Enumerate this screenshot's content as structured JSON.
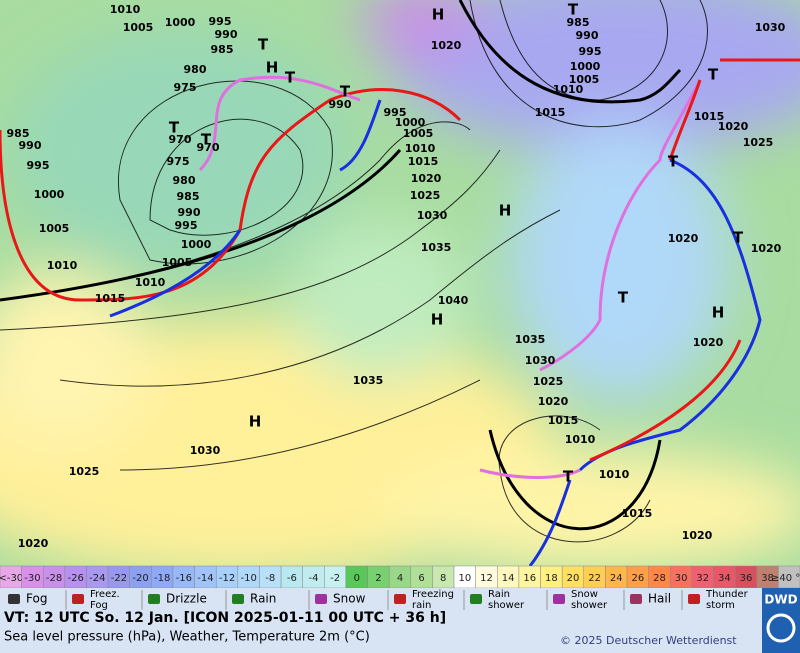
{
  "map": {
    "isobar_labels": [
      "1010",
      "1005",
      "1000",
      "995",
      "990",
      "985",
      "980",
      "975",
      "970",
      "970",
      "975",
      "980",
      "985",
      "990",
      "995",
      "1000",
      "1005",
      "1010",
      "1015",
      "1010",
      "1005",
      "1000",
      "995",
      "990",
      "985",
      "990",
      "995",
      "1000",
      "1005",
      "1010",
      "1015",
      "1020",
      "1025",
      "1030",
      "1035",
      "1040",
      "1035",
      "1030",
      "1025",
      "1020",
      "1015",
      "1010",
      "1010",
      "1015",
      "1020",
      "1035",
      "1030",
      "1025",
      "1020",
      "1020",
      "1015",
      "1010",
      "1005",
      "1000",
      "995",
      "990",
      "985",
      "1030",
      "1020",
      "1015",
      "1025",
      "1020",
      "1020",
      "1020"
    ],
    "centers": [
      "H",
      "T",
      "H",
      "T",
      "T",
      "T",
      "T",
      "H",
      "T",
      "T",
      "T",
      "T",
      "H",
      "H",
      "H",
      "T",
      "T"
    ]
  },
  "temperature_scale": [
    {
      "label": "<-30",
      "color": "#e8a8e8"
    },
    {
      "label": "-30",
      "color": "#d890e8"
    },
    {
      "label": "-28",
      "color": "#c890e8"
    },
    {
      "label": "-26",
      "color": "#b890f0"
    },
    {
      "label": "-24",
      "color": "#a898f0"
    },
    {
      "label": "-22",
      "color": "#9898f0"
    },
    {
      "label": "-20",
      "color": "#8ca0f0"
    },
    {
      "label": "-18",
      "color": "#90a8f8"
    },
    {
      "label": "-16",
      "color": "#98b8f8"
    },
    {
      "label": "-14",
      "color": "#a0c4f8"
    },
    {
      "label": "-12",
      "color": "#a8d0f8"
    },
    {
      "label": "-10",
      "color": "#b0d8f8"
    },
    {
      "label": "-8",
      "color": "#b8e0f8"
    },
    {
      "label": "-6",
      "color": "#b8e8f0"
    },
    {
      "label": "-4",
      "color": "#c0ecf0"
    },
    {
      "label": "-2",
      "color": "#c8f0f0"
    },
    {
      "label": "0",
      "color": "#58c858"
    },
    {
      "label": "2",
      "color": "#78d070"
    },
    {
      "label": "4",
      "color": "#98d888"
    },
    {
      "label": "6",
      "color": "#b0e098"
    },
    {
      "label": "8",
      "color": "#c8e8b0"
    },
    {
      "label": "10",
      "color": "#ffffff"
    },
    {
      "label": "12",
      "color": "#fffce0"
    },
    {
      "label": "14",
      "color": "#fff8c0"
    },
    {
      "label": "16",
      "color": "#fff4a0"
    },
    {
      "label": "18",
      "color": "#fff080"
    },
    {
      "label": "20",
      "color": "#ffe060"
    },
    {
      "label": "22",
      "color": "#ffd050"
    },
    {
      "label": "24",
      "color": "#ffb848"
    },
    {
      "label": "26",
      "color": "#ffa048"
    },
    {
      "label": "28",
      "color": "#ff8848"
    },
    {
      "label": "30",
      "color": "#f87060"
    },
    {
      "label": "32",
      "color": "#f06070"
    },
    {
      "label": "34",
      "color": "#e85868"
    },
    {
      "label": "36",
      "color": "#d85060"
    },
    {
      "label": "38",
      "color": "#c08070"
    },
    {
      "label": "≥40 °C",
      "color": "#c0c0c0"
    }
  ],
  "weather_legend": [
    {
      "lines": [
        "Fog"
      ]
    },
    {
      "lines": [
        "Freez.",
        "Fog"
      ]
    },
    {
      "lines": [
        "Drizzle"
      ]
    },
    {
      "lines": [
        "Rain"
      ]
    },
    {
      "lines": [
        "Snow"
      ]
    },
    {
      "lines": [
        "Freezing",
        "rain"
      ]
    },
    {
      "lines": [
        "Rain",
        "shower"
      ]
    },
    {
      "lines": [
        "Snow",
        "shower"
      ]
    },
    {
      "lines": [
        "Hail"
      ]
    },
    {
      "lines": [
        "Thunder",
        "storm"
      ]
    }
  ],
  "footer": {
    "valid_time": "VT: 12 UTC So.  12 Jan. [ICON 2025-01-11  00 UTC + 36 h]",
    "description": "Sea level pressure (hPa), Weather, Temperature 2m (°C)",
    "copyright": "© 2025 Deutscher Wetterdienst",
    "logo": "DWD"
  }
}
